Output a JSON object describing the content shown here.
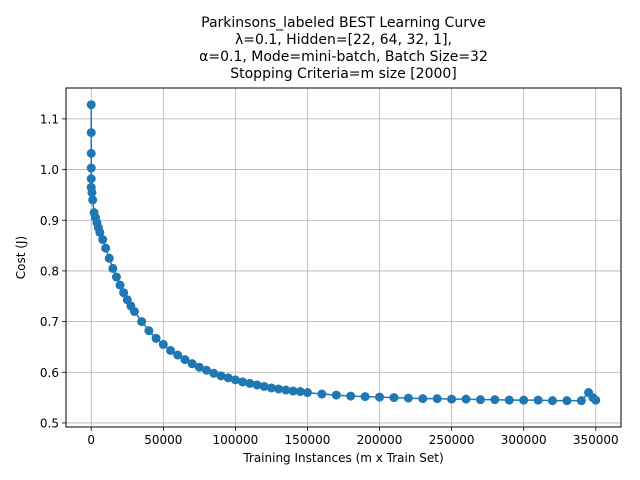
{
  "chart_data": {
    "type": "line",
    "title_lines": [
      "Parkinsons_labeled BEST Learning Curve",
      "λ=0.1,  Hidden=[22, 64, 32, 1],",
      "α=0.1, Mode=mini-batch, Batch Size=32",
      "Stopping Criteria=m size [2000]"
    ],
    "xlabel": "Training Instances (m x Train Set)",
    "ylabel": "Cost (J)",
    "xlim": [
      -17500,
      367500
    ],
    "ylim": [
      0.492,
      1.161
    ],
    "x_ticks": [
      0,
      50000,
      100000,
      150000,
      200000,
      250000,
      300000,
      350000
    ],
    "x_tick_labels": [
      "0",
      "50000",
      "100000",
      "150000",
      "200000",
      "250000",
      "300000",
      "350000"
    ],
    "y_ticks": [
      0.5,
      0.6,
      0.7,
      0.8,
      0.9,
      1.0,
      1.1
    ],
    "y_tick_labels": [
      "0.5",
      "0.6",
      "0.7",
      "0.8",
      "0.9",
      "1.0",
      "1.1"
    ],
    "grid": true,
    "marker": "o",
    "color": "#1f77b4",
    "series": [
      {
        "x": [
          0,
          0,
          0,
          0,
          0,
          0,
          500,
          1000,
          2000,
          3000,
          4000,
          5000,
          6000,
          8000,
          10000,
          12500,
          15000,
          17500,
          20000,
          22500,
          25000,
          27500,
          30000,
          35000,
          40000,
          45000,
          50000,
          55000,
          60000,
          65000,
          70000,
          75000,
          80000,
          85000,
          90000,
          95000,
          100000,
          105000,
          110000,
          115000,
          120000,
          125000,
          130000,
          135000,
          140000,
          145000,
          150000,
          160000,
          170000,
          180000,
          190000,
          200000,
          210000,
          220000,
          230000,
          240000,
          250000,
          260000,
          270000,
          280000,
          290000,
          300000,
          310000,
          320000,
          330000,
          340000,
          345000,
          348000,
          350000
        ],
        "y": [
          1.128,
          1.073,
          1.032,
          1.003,
          0.982,
          0.965,
          0.955,
          0.94,
          0.915,
          0.905,
          0.895,
          0.885,
          0.876,
          0.862,
          0.845,
          0.825,
          0.805,
          0.788,
          0.772,
          0.757,
          0.743,
          0.731,
          0.72,
          0.7,
          0.682,
          0.667,
          0.655,
          0.643,
          0.634,
          0.625,
          0.617,
          0.61,
          0.604,
          0.598,
          0.593,
          0.589,
          0.585,
          0.581,
          0.578,
          0.575,
          0.572,
          0.569,
          0.567,
          0.565,
          0.563,
          0.562,
          0.56,
          0.557,
          0.555,
          0.553,
          0.552,
          0.551,
          0.55,
          0.549,
          0.548,
          0.548,
          0.547,
          0.547,
          0.546,
          0.546,
          0.545,
          0.545,
          0.545,
          0.544,
          0.544,
          0.544,
          0.56,
          0.55,
          0.545
        ]
      }
    ]
  }
}
